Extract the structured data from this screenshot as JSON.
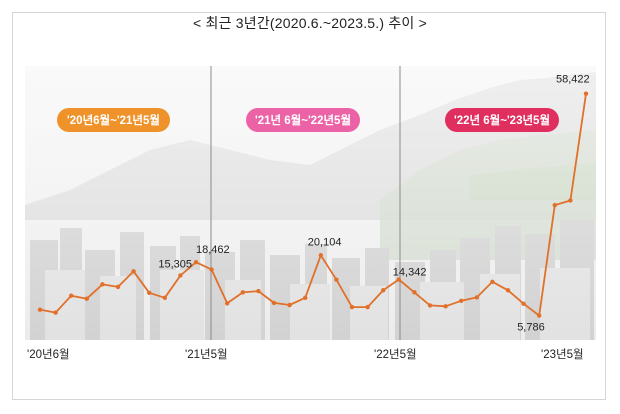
{
  "title": "< 최근 3년간(2020.6.~2023.5.) 추이 >",
  "colors": {
    "line": "#e0702a",
    "marker": "#e0702a",
    "period1": "#f0922a",
    "period2": "#ec62a6",
    "period3": "#e02f5e",
    "divider": "#8a8a8a"
  },
  "periods": [
    {
      "label": "'20년6월~'21년5월",
      "color_key": "period1"
    },
    {
      "label": "'21년 6월~'22년5월",
      "color_key": "period2"
    },
    {
      "label": "'22년 6월~'23년5월",
      "color_key": "period3"
    }
  ],
  "chart_data": {
    "type": "line",
    "title": "< 최근 3년간(2020.6.~2023.5.) 추이 >",
    "xlabel": "",
    "ylabel": "",
    "x_tick_labels": [
      "'20년6월",
      "'21년5월",
      "'22년5월",
      "'23년5월"
    ],
    "ylim": [
      0,
      65000
    ],
    "grid": false,
    "series": [
      {
        "values": [
          7200,
          6500,
          10500,
          9800,
          13200,
          12600,
          16300,
          11200,
          10000,
          15305,
          18462,
          16700,
          8700,
          11300,
          11600,
          8800,
          8300,
          10000,
          20104,
          14300,
          7800,
          7800,
          11800,
          14342,
          11300,
          8200,
          8000,
          9300,
          10100,
          13800,
          11800,
          8600,
          5786,
          32000,
          33100,
          58422
        ]
      }
    ],
    "data_labels": [
      {
        "index": 9,
        "text": "15,305"
      },
      {
        "index": 10,
        "text": "18,462"
      },
      {
        "index": 18,
        "text": "20,104"
      },
      {
        "index": 23,
        "text": "14,342"
      },
      {
        "index": 32,
        "text": "5,786"
      },
      {
        "index": 35,
        "text": "58,422"
      }
    ]
  }
}
